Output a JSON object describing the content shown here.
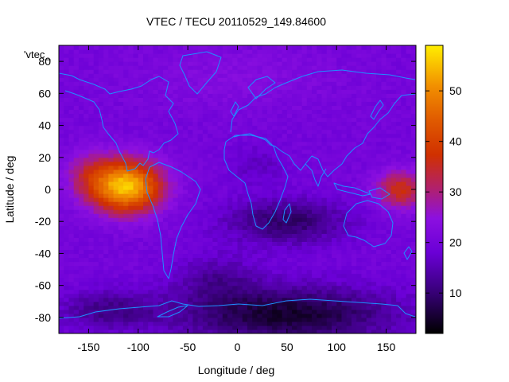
{
  "chart_data": {
    "type": "heatmap",
    "title": "VTEC / TECU 20110529_149.84600",
    "xlabel": "Longitude / deg",
    "ylabel": "Latitude / deg",
    "xlim": [
      -180,
      180
    ],
    "ylim": [
      -90,
      90
    ],
    "x_ticks": [
      -150,
      -100,
      -50,
      0,
      50,
      100,
      150
    ],
    "y_ticks": [
      -80,
      -60,
      -40,
      -20,
      0,
      20,
      40,
      60,
      80
    ],
    "x_tick_labels": [
      "-150",
      "-100",
      "-50",
      "0",
      "50",
      "100",
      "150"
    ],
    "y_tick_labels": [
      "-80",
      "-60",
      "-40",
      "-20",
      "0",
      "20",
      "40",
      "60",
      "80"
    ],
    "legend_label": "'vtec_",
    "colorbar": {
      "range": [
        2,
        59
      ],
      "ticks": [
        10,
        20,
        30,
        40,
        50
      ],
      "tick_labels": [
        "10",
        "20",
        "30",
        "40",
        "50"
      ],
      "palette": "black-purple-red-yellow (gnuplot default)"
    },
    "features": [
      {
        "name": "equatorial anomaly maximum",
        "lon": -100,
        "lat": 5,
        "vtec": 57
      },
      {
        "name": "western Pacific enhancement",
        "lon": 160,
        "lat": 0,
        "vtec": 38
      },
      {
        "name": "Asian / Southern-Ocean minimum",
        "lon": 70,
        "lat": -75,
        "vtec": 3
      },
      {
        "name": "mid-latitude background",
        "lon": 0,
        "lat": 40,
        "vtec": 20
      }
    ]
  },
  "colors": {
    "background": "#ffffff",
    "coastline": "#1e90ff",
    "axis": "#000000"
  }
}
